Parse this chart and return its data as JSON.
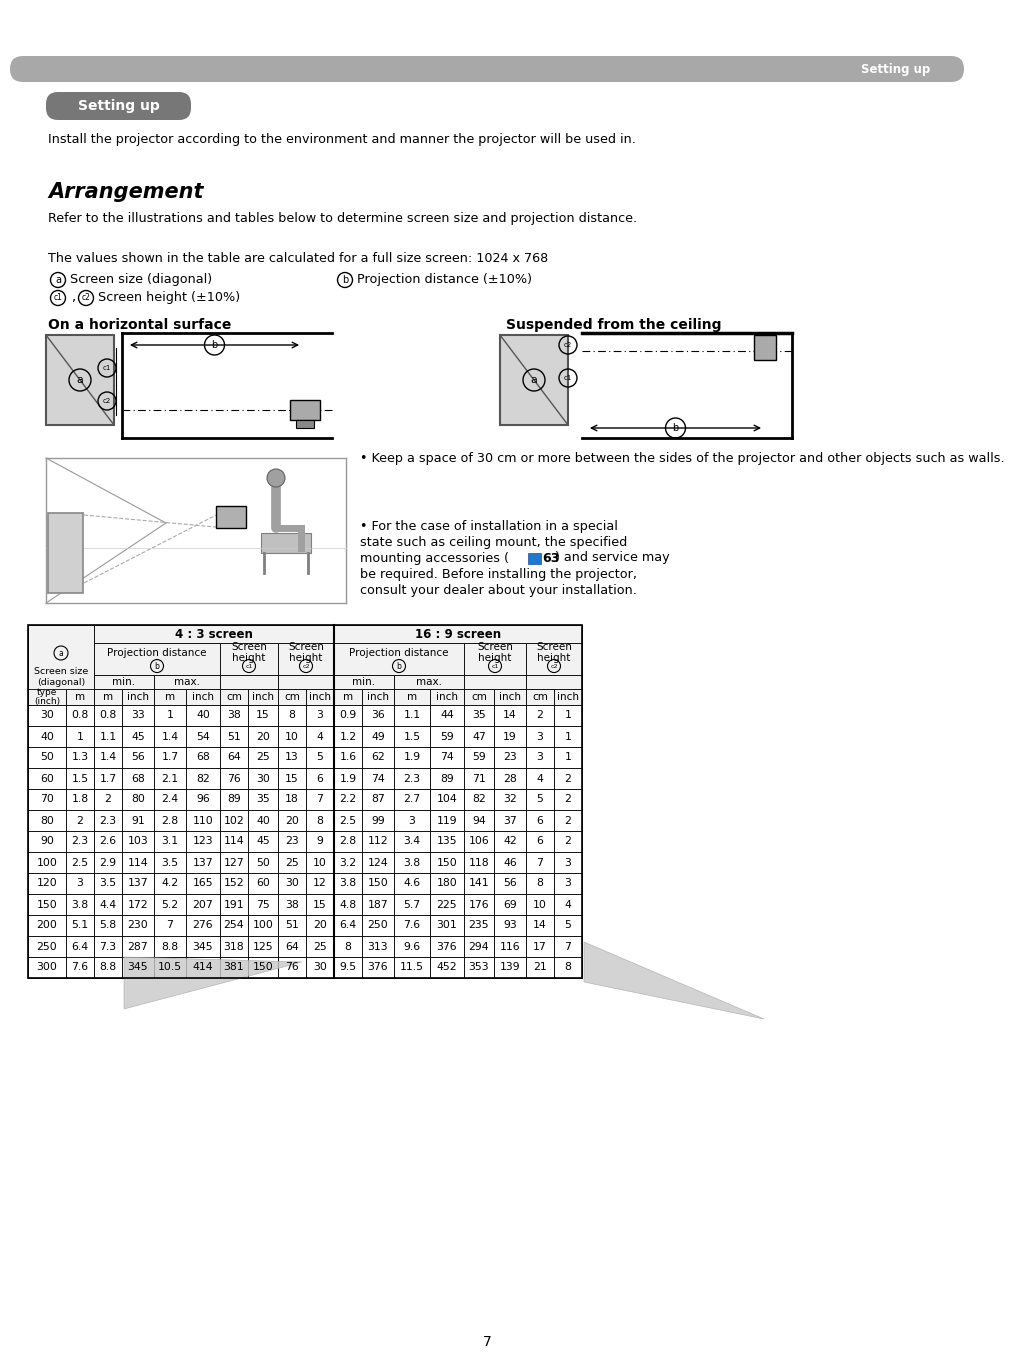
{
  "page_bg": "#ffffff",
  "header_text": "Setting up",
  "badge_text": "Setting up",
  "intro_text": "Install the projector according to the environment and manner the projector will be used in.",
  "arrangement_title": "Arrangement",
  "refer_text": "Refer to the illustrations and tables below to determine screen size and projection distance.",
  "values_text": "The values shown in the table are calculated for a full size screen: 1024 x 768",
  "legend_a_text": "Screen size (diagonal)",
  "legend_b_text": "Projection distance (±10%)",
  "legend_c_text": "Screen height (±10%)",
  "horiz_title": "On a horizontal surface",
  "ceiling_title": "Suspended from the ceiling",
  "bullet1": "• Keep a space of 30 cm or more between the sides of the projector and other objects such as walls.",
  "bullet2a": "• For the case of installation in a special state such as ceiling mount, the specified mounting accessories (",
  "bullet2b": "63",
  "bullet2c": ") and service may be required. Before installing the projector, consult your dealer about your installation.",
  "table_header_43": "4 : 3 screen",
  "table_header_169": "16 : 9 screen",
  "table_data": [
    [
      30,
      0.8,
      0.8,
      33,
      1.0,
      40,
      38,
      15,
      8,
      3,
      0.9,
      36,
      1.1,
      44,
      35,
      14,
      2,
      1
    ],
    [
      40,
      1.0,
      1.1,
      45,
      1.4,
      54,
      51,
      20,
      10,
      4,
      1.2,
      49,
      1.5,
      59,
      47,
      19,
      3,
      1
    ],
    [
      50,
      1.3,
      1.4,
      56,
      1.7,
      68,
      64,
      25,
      13,
      5,
      1.6,
      62,
      1.9,
      74,
      59,
      23,
      3,
      1
    ],
    [
      60,
      1.5,
      1.7,
      68,
      2.1,
      82,
      76,
      30,
      15,
      6,
      1.9,
      74,
      2.3,
      89,
      71,
      28,
      4,
      2
    ],
    [
      70,
      1.8,
      2.0,
      80,
      2.4,
      96,
      89,
      35,
      18,
      7,
      2.2,
      87,
      2.7,
      104,
      82,
      32,
      5,
      2
    ],
    [
      80,
      2.0,
      2.3,
      91,
      2.8,
      110,
      102,
      40,
      20,
      8,
      2.5,
      99,
      3.0,
      119,
      94,
      37,
      6,
      2
    ],
    [
      90,
      2.3,
      2.6,
      103,
      3.1,
      123,
      114,
      45,
      23,
      9,
      2.8,
      112,
      3.4,
      135,
      106,
      42,
      6,
      2
    ],
    [
      100,
      2.5,
      2.9,
      114,
      3.5,
      137,
      127,
      50,
      25,
      10,
      3.2,
      124,
      3.8,
      150,
      118,
      46,
      7,
      3
    ],
    [
      120,
      3.0,
      3.5,
      137,
      4.2,
      165,
      152,
      60,
      30,
      12,
      3.8,
      150,
      4.6,
      180,
      141,
      56,
      8,
      3
    ],
    [
      150,
      3.8,
      4.4,
      172,
      5.2,
      207,
      191,
      75,
      38,
      15,
      4.8,
      187,
      5.7,
      225,
      176,
      69,
      10,
      4
    ],
    [
      200,
      5.1,
      5.8,
      230,
      7.0,
      276,
      254,
      100,
      51,
      20,
      6.4,
      250,
      7.6,
      301,
      235,
      93,
      14,
      5
    ],
    [
      250,
      6.4,
      7.3,
      287,
      8.8,
      345,
      318,
      125,
      64,
      25,
      8.0,
      313,
      9.6,
      376,
      294,
      116,
      17,
      7
    ],
    [
      300,
      7.6,
      8.8,
      345,
      10.5,
      414,
      381,
      150,
      76,
      30,
      9.5,
      376,
      11.5,
      452,
      353,
      139,
      21,
      8
    ]
  ],
  "page_number": "7"
}
